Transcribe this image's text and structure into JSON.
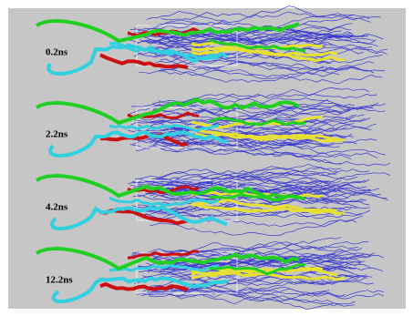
{
  "panels": [
    {
      "label": "0.2ns"
    },
    {
      "label": "2.2ns"
    },
    {
      "label": "4.2ns"
    },
    {
      "label": "12.2ns"
    }
  ]
}
